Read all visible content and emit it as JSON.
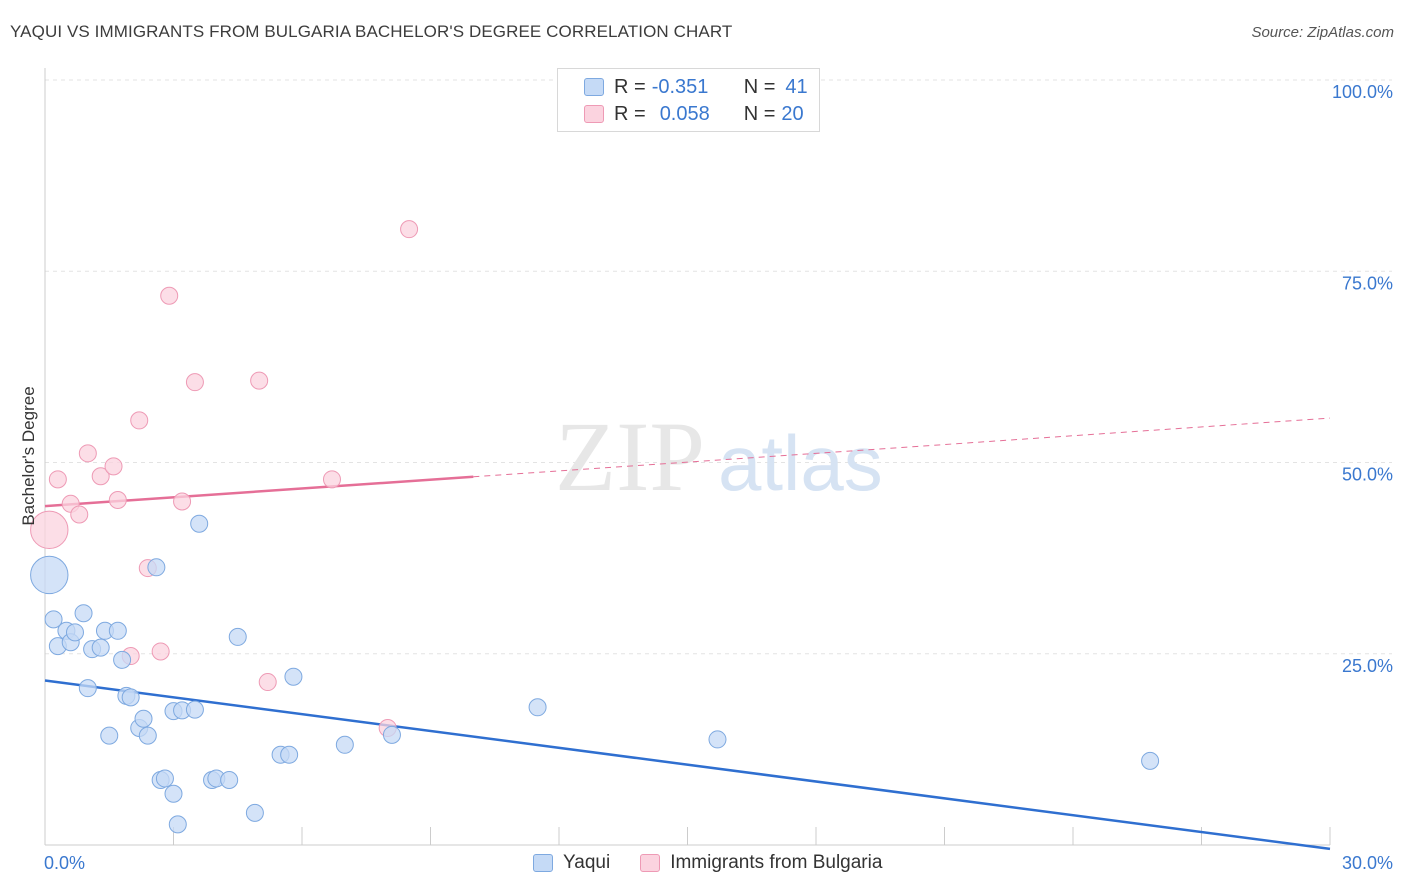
{
  "chart_data": {
    "type": "scatter",
    "title": "YAQUI VS IMMIGRANTS FROM BULGARIA BACHELOR'S DEGREE CORRELATION CHART",
    "source": "Source: ZipAtlas.com",
    "ylabel": "Bachelor's Degree",
    "xlim": [
      0,
      30
    ],
    "ylim": [
      0,
      100
    ],
    "x_tick_labels": [
      "0.0%",
      "30.0%"
    ],
    "y_tick_labels": [
      "100.0%",
      "75.0%",
      "50.0%",
      "25.0%"
    ],
    "y_tick_values": [
      100,
      75,
      50,
      25
    ],
    "watermark": {
      "zip": "ZIP",
      "atlas": "atlas"
    },
    "legend": {
      "r_label": "R =",
      "n_label": "N =",
      "entries": [
        {
          "r": "-0.351",
          "n": "41"
        },
        {
          "r": "0.058",
          "n": "20"
        }
      ]
    },
    "colors": {
      "blue_fill": "#c5daf6",
      "blue_stroke": "#7ea9e0",
      "blue_line": "#2f6fd0",
      "pink_fill": "#fbd3df",
      "pink_stroke": "#ee9ab5",
      "pink_line": "#e56f97",
      "axis_label": "#3a78cf"
    },
    "series": [
      {
        "name": "Yaqui",
        "trend": {
          "x": [
            0,
            30
          ],
          "y": [
            21.5,
            -0.5
          ],
          "dashed_from": null
        },
        "points": [
          [
            0.1,
            35.3,
            2.2
          ],
          [
            0.2,
            29.5,
            1
          ],
          [
            0.3,
            26.0,
            1
          ],
          [
            0.5,
            28.0,
            1
          ],
          [
            0.6,
            26.5,
            1
          ],
          [
            0.7,
            27.8,
            1
          ],
          [
            0.9,
            30.3,
            1
          ],
          [
            1.0,
            20.5,
            1
          ],
          [
            1.1,
            25.6,
            1
          ],
          [
            1.3,
            25.8,
            1
          ],
          [
            1.4,
            28.0,
            1
          ],
          [
            1.5,
            14.3,
            1
          ],
          [
            1.7,
            28.0,
            1
          ],
          [
            1.8,
            24.2,
            1
          ],
          [
            1.9,
            19.5,
            1
          ],
          [
            2.0,
            19.3,
            1
          ],
          [
            2.2,
            15.3,
            1
          ],
          [
            2.3,
            16.5,
            1
          ],
          [
            2.4,
            14.3,
            1
          ],
          [
            2.6,
            36.3,
            1
          ],
          [
            2.7,
            8.5,
            1
          ],
          [
            2.8,
            8.7,
            1
          ],
          [
            3.0,
            6.7,
            1
          ],
          [
            3.0,
            17.5,
            1
          ],
          [
            3.1,
            2.7,
            1
          ],
          [
            3.2,
            17.6,
            1
          ],
          [
            3.5,
            17.7,
            1
          ],
          [
            3.6,
            42.0,
            1
          ],
          [
            3.9,
            8.5,
            1
          ],
          [
            4.0,
            8.7,
            1
          ],
          [
            4.3,
            8.5,
            1
          ],
          [
            4.5,
            27.2,
            1
          ],
          [
            4.9,
            4.2,
            1
          ],
          [
            5.5,
            11.8,
            1
          ],
          [
            5.7,
            11.8,
            1
          ],
          [
            5.8,
            22.0,
            1
          ],
          [
            7.0,
            13.1,
            1
          ],
          [
            8.1,
            14.4,
            1
          ],
          [
            11.5,
            18.0,
            1
          ],
          [
            15.7,
            13.8,
            1
          ],
          [
            25.8,
            11.0,
            1
          ]
        ]
      },
      {
        "name": "Immigrants from Bulgaria",
        "trend": {
          "x": [
            0,
            30
          ],
          "y": [
            44.3,
            55.8
          ],
          "dashed_from": 10.0
        },
        "points": [
          [
            0.1,
            41.2,
            2.2
          ],
          [
            0.3,
            47.8,
            1
          ],
          [
            0.6,
            44.6,
            1
          ],
          [
            0.8,
            43.2,
            1
          ],
          [
            1.0,
            51.2,
            1
          ],
          [
            1.3,
            48.2,
            1
          ],
          [
            1.6,
            49.5,
            1
          ],
          [
            1.7,
            45.1,
            1
          ],
          [
            2.2,
            55.5,
            1
          ],
          [
            2.4,
            36.2,
            1
          ],
          [
            2.7,
            25.3,
            1
          ],
          [
            2.9,
            71.8,
            1
          ],
          [
            3.2,
            44.9,
            1
          ],
          [
            3.5,
            60.5,
            1
          ],
          [
            5.0,
            60.7,
            1
          ],
          [
            5.2,
            21.3,
            1
          ],
          [
            6.7,
            47.8,
            1
          ],
          [
            8.0,
            15.3,
            1
          ],
          [
            8.5,
            80.5,
            1
          ],
          [
            2.0,
            24.7,
            1
          ]
        ]
      }
    ]
  }
}
